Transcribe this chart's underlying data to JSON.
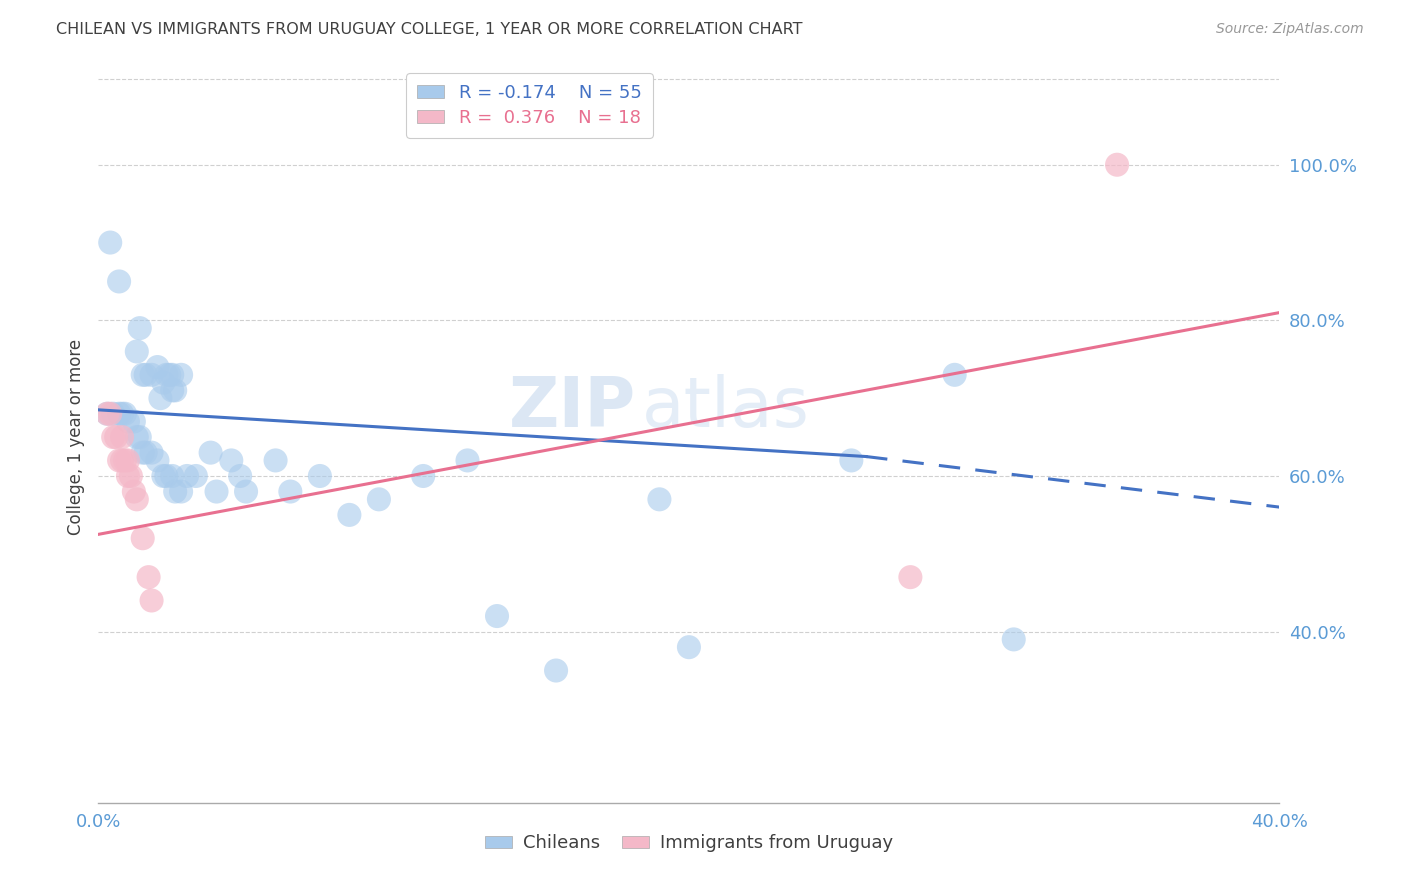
{
  "title": "CHILEAN VS IMMIGRANTS FROM URUGUAY COLLEGE, 1 YEAR OR MORE CORRELATION CHART",
  "source": "Source: ZipAtlas.com",
  "ylabel": "College, 1 year or more",
  "xlim": [
    0.0,
    0.4
  ],
  "ylim": [
    0.18,
    1.12
  ],
  "yticks": [
    0.4,
    0.6,
    0.8,
    1.0
  ],
  "ytick_labels": [
    "40.0%",
    "60.0%",
    "80.0%",
    "100.0%"
  ],
  "xticks": [
    0.0,
    0.05,
    0.1,
    0.15,
    0.2,
    0.25,
    0.3,
    0.35,
    0.4
  ],
  "xtick_labels": [
    "0.0%",
    "",
    "",
    "",
    "",
    "",
    "",
    "",
    "40.0%"
  ],
  "legend_r_blue": "R = -0.174",
  "legend_n_blue": "N = 55",
  "legend_r_pink": "R =  0.376",
  "legend_n_pink": "N = 18",
  "blue_color": "#a8caeb",
  "pink_color": "#f4b8c8",
  "line_blue_color": "#4472c4",
  "line_pink_color": "#e87090",
  "background_color": "#ffffff",
  "grid_color": "#d0d0d0",
  "tick_label_color": "#5b9bd5",
  "title_color": "#404040",
  "watermark": "ZIPatlas",
  "blue_dots": [
    [
      0.004,
      0.9
    ],
    [
      0.007,
      0.85
    ],
    [
      0.013,
      0.76
    ],
    [
      0.014,
      0.79
    ],
    [
      0.015,
      0.73
    ],
    [
      0.016,
      0.73
    ],
    [
      0.018,
      0.73
    ],
    [
      0.02,
      0.74
    ],
    [
      0.021,
      0.7
    ],
    [
      0.022,
      0.72
    ],
    [
      0.023,
      0.73
    ],
    [
      0.024,
      0.73
    ],
    [
      0.025,
      0.71
    ],
    [
      0.025,
      0.73
    ],
    [
      0.026,
      0.71
    ],
    [
      0.028,
      0.73
    ],
    [
      0.003,
      0.68
    ],
    [
      0.005,
      0.68
    ],
    [
      0.007,
      0.68
    ],
    [
      0.008,
      0.68
    ],
    [
      0.009,
      0.68
    ],
    [
      0.01,
      0.67
    ],
    [
      0.012,
      0.67
    ],
    [
      0.013,
      0.65
    ],
    [
      0.014,
      0.65
    ],
    [
      0.015,
      0.63
    ],
    [
      0.016,
      0.63
    ],
    [
      0.018,
      0.63
    ],
    [
      0.02,
      0.62
    ],
    [
      0.022,
      0.6
    ],
    [
      0.023,
      0.6
    ],
    [
      0.025,
      0.6
    ],
    [
      0.026,
      0.58
    ],
    [
      0.028,
      0.58
    ],
    [
      0.03,
      0.6
    ],
    [
      0.033,
      0.6
    ],
    [
      0.038,
      0.63
    ],
    [
      0.04,
      0.58
    ],
    [
      0.045,
      0.62
    ],
    [
      0.048,
      0.6
    ],
    [
      0.05,
      0.58
    ],
    [
      0.06,
      0.62
    ],
    [
      0.065,
      0.58
    ],
    [
      0.075,
      0.6
    ],
    [
      0.085,
      0.55
    ],
    [
      0.095,
      0.57
    ],
    [
      0.11,
      0.6
    ],
    [
      0.125,
      0.62
    ],
    [
      0.135,
      0.42
    ],
    [
      0.155,
      0.35
    ],
    [
      0.19,
      0.57
    ],
    [
      0.2,
      0.38
    ],
    [
      0.255,
      0.62
    ],
    [
      0.29,
      0.73
    ],
    [
      0.31,
      0.39
    ]
  ],
  "pink_dots": [
    [
      0.003,
      0.68
    ],
    [
      0.004,
      0.68
    ],
    [
      0.005,
      0.65
    ],
    [
      0.006,
      0.65
    ],
    [
      0.007,
      0.62
    ],
    [
      0.008,
      0.65
    ],
    [
      0.008,
      0.62
    ],
    [
      0.009,
      0.62
    ],
    [
      0.01,
      0.62
    ],
    [
      0.01,
      0.6
    ],
    [
      0.011,
      0.6
    ],
    [
      0.012,
      0.58
    ],
    [
      0.013,
      0.57
    ],
    [
      0.015,
      0.52
    ],
    [
      0.017,
      0.47
    ],
    [
      0.018,
      0.44
    ],
    [
      0.275,
      0.47
    ],
    [
      0.345,
      1.0
    ]
  ],
  "blue_line_solid": {
    "x0": 0.0,
    "y0": 0.685,
    "x1": 0.26,
    "y1": 0.625
  },
  "blue_line_dashed": {
    "x0": 0.26,
    "y0": 0.625,
    "x1": 0.4,
    "y1": 0.56
  },
  "pink_line": {
    "x0": 0.0,
    "y0": 0.525,
    "x1": 0.4,
    "y1": 0.81
  }
}
